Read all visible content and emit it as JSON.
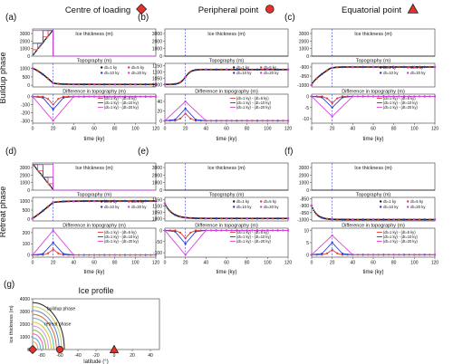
{
  "column_titles": [
    "Centre of loading",
    "Peripheral point",
    "Equatorial point"
  ],
  "row_labels": [
    "Buildup phase",
    "Retreat phase"
  ],
  "panel_letters": [
    "(a)",
    "(b)",
    "(c)",
    "(d)",
    "(e)",
    "(f)"
  ],
  "ice_profile_letter": "(g)",
  "ice_profile_title": "Ice profile",
  "column_markers": [
    {
      "shape": "diamond",
      "color": "#e8302a"
    },
    {
      "shape": "circle",
      "color": "#e8302a"
    },
    {
      "shape": "triangle",
      "color": "#e8302a"
    }
  ],
  "subplot_titles": {
    "ice": "Ice thickness (m)",
    "topo": "Topography (m)",
    "diff": "Difference in topography (m)"
  },
  "xlabel": "time (ky)",
  "x_ticks": [
    "0",
    "20",
    "40",
    "60",
    "80",
    "100",
    "120"
  ],
  "legend_topo": [
    "dt=1 ky",
    "dt=5 ky",
    "dt=10 ky",
    "dt=20 ky"
  ],
  "legend_diff": [
    "(dt=1 ky) - (dt=5 ky)",
    "(dt=1 ky) - (dt=10 ky)",
    "(dt=1 ky) - (dt=20 ky)"
  ],
  "colors": {
    "dt1": "#1a1a1a",
    "dt5": "#e03c3c",
    "dt10": "#2a3cc8",
    "dt20": "#e040e0",
    "event_line": "#3b3bd6"
  },
  "chart_data": [
    {
      "panel": "a",
      "type": "line",
      "phase": "buildup",
      "location": "centre",
      "ice_yticks": [
        "0",
        "1000",
        "2000",
        "3000"
      ],
      "ice_ylim": [
        0,
        3600
      ],
      "topo_yticks": [
        "0",
        "500",
        "1000"
      ],
      "topo_ylim": [
        -100,
        1300
      ],
      "topo_start": 1000,
      "topo_end": 50,
      "diff_yticks": [
        "-300",
        "-200",
        "-100",
        "0"
      ],
      "diff_ylim": [
        -330,
        30
      ],
      "diff_peaks": [
        -100,
        -160,
        -300
      ]
    },
    {
      "panel": "b",
      "type": "line",
      "phase": "buildup",
      "location": "peripheral",
      "ice_yticks": [
        "0",
        "1000",
        "2000",
        "3000"
      ],
      "ice_ylim": [
        0,
        3600
      ],
      "topo_yticks": [
        "1000",
        "1050",
        "1100",
        "1150"
      ],
      "topo_ylim": [
        980,
        1170
      ],
      "topo_start": 1000,
      "topo_end": 1120,
      "diff_yticks": [
        "0",
        "20",
        "40"
      ],
      "diff_ylim": [
        -5,
        55
      ],
      "diff_peaks": [
        15,
        25,
        40
      ]
    },
    {
      "panel": "c",
      "type": "line",
      "phase": "buildup",
      "location": "equatorial",
      "ice_yticks": [
        "0",
        "1000",
        "2000",
        "3000"
      ],
      "ice_ylim": [
        0,
        3600
      ],
      "topo_yticks": [
        "-1000",
        "-950",
        "-900"
      ],
      "topo_ylim": [
        -1010,
        -880
      ],
      "topo_start": -1000,
      "topo_end": -900,
      "diff_yticks": [
        "-10",
        "-5",
        "0"
      ],
      "diff_ylim": [
        -12,
        1
      ],
      "diff_peaks": [
        -3,
        -5,
        -9
      ]
    },
    {
      "panel": "d",
      "type": "line",
      "phase": "retreat",
      "location": "centre",
      "ice_yticks": [
        "0",
        "1000",
        "2000",
        "3000"
      ],
      "ice_ylim": [
        0,
        3600
      ],
      "topo_yticks": [
        "0",
        "500",
        "1000"
      ],
      "topo_ylim": [
        -100,
        1200
      ],
      "topo_start": 50,
      "topo_end": 1000,
      "diff_yticks": [
        "0",
        "100",
        "200"
      ],
      "diff_ylim": [
        -20,
        240
      ],
      "diff_peaks": [
        50,
        110,
        220
      ]
    },
    {
      "panel": "e",
      "type": "line",
      "phase": "retreat",
      "location": "peripheral",
      "ice_yticks": [
        "0",
        "1000",
        "2000",
        "3000"
      ],
      "ice_ylim": [
        0,
        3600
      ],
      "topo_yticks": [
        "1000",
        "1050",
        "1100",
        "1150"
      ],
      "topo_ylim": [
        980,
        1170
      ],
      "topo_start": 1120,
      "topo_end": 1000,
      "diff_yticks": [
        "-100",
        "-50",
        "0"
      ],
      "diff_ylim": [
        -120,
        10
      ],
      "diff_peaks": [
        -35,
        -60,
        -110
      ]
    },
    {
      "panel": "f",
      "type": "line",
      "phase": "retreat",
      "location": "equatorial",
      "ice_yticks": [
        "0",
        "1000",
        "2000",
        "3000"
      ],
      "ice_ylim": [
        0,
        3600
      ],
      "topo_yticks": [
        "-1000",
        "-950",
        "-900",
        "-850"
      ],
      "topo_ylim": [
        -1010,
        -840
      ],
      "topo_start": -900,
      "topo_end": -1000,
      "diff_yticks": [
        "0",
        "5",
        "10"
      ],
      "diff_ylim": [
        -1,
        11
      ],
      "diff_peaks": [
        2,
        5,
        8
      ]
    },
    {
      "panel": "g",
      "type": "area",
      "title": "Ice profile",
      "xlabel": "latitude (°)",
      "ylabel": "ice thickness (m)",
      "x_ticks": [
        "-80",
        "-60",
        "-40",
        "-20",
        "0",
        "20",
        "40"
      ],
      "xlim": [
        -90,
        50
      ],
      "y_ticks": [
        "0",
        "1000",
        "2000",
        "3000",
        "4000"
      ],
      "ylim": [
        0,
        4000
      ],
      "annotations": [
        "buildup phase",
        "retreat phase"
      ],
      "marker_latitudes": [
        -90,
        -60,
        0
      ]
    }
  ]
}
